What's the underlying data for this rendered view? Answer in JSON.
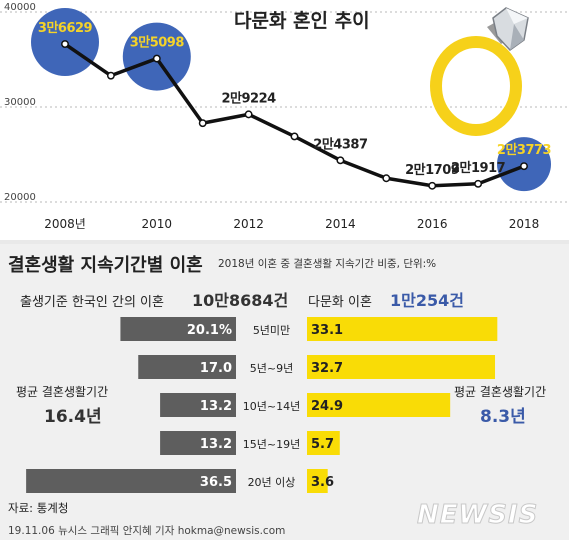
{
  "title": "다문화 혼인 추이",
  "chart_data": [
    {
      "type": "line",
      "x": [
        2008,
        2009,
        2010,
        2011,
        2012,
        2013,
        2014,
        2015,
        2016,
        2017,
        2018
      ],
      "series": [
        {
          "values": [
            36629,
            33300,
            35098,
            28300,
            29224,
            26900,
            24387,
            22500,
            21709,
            21917,
            23773
          ]
        }
      ],
      "point_labels": [
        {
          "x": 2008,
          "label": "3만6629",
          "highlight": true
        },
        {
          "x": 2010,
          "label": "3만5098",
          "highlight": true
        },
        {
          "x": 2012,
          "label": "2만9224",
          "highlight": false
        },
        {
          "x": 2014,
          "label": "2만4387",
          "highlight": false
        },
        {
          "x": 2016,
          "label": "2만1709",
          "highlight": false
        },
        {
          "x": 2017,
          "label": "2만1917",
          "highlight": false
        },
        {
          "x": 2018,
          "label": "2만3773",
          "highlight": true
        }
      ],
      "x_tick_labels": [
        "2008년",
        "2010",
        "2012",
        "2014",
        "2016",
        "2018"
      ],
      "y_tick_labels": [
        "40000",
        "30000",
        "20000"
      ],
      "ylim": [
        20000,
        40000
      ],
      "grid": true
    },
    {
      "type": "bar",
      "title": "결혼생활 지속기간별 이혼",
      "subtitle": "2018년 이혼 중 결혼생활 지속기간 비중, 단위:%",
      "categories": [
        "5년미만",
        "5년~9년",
        "10년~14년",
        "15년~19년",
        "20년 이상"
      ],
      "series": [
        {
          "name": "출생기준 한국인 간의 이혼",
          "values": [
            20.1,
            17.0,
            13.2,
            13.2,
            36.5
          ],
          "labels": [
            "20.1%",
            "17.0",
            "13.2",
            "13.2",
            "36.5"
          ]
        },
        {
          "name": "다문화 이혼",
          "values": [
            33.1,
            32.7,
            24.9,
            5.7,
            3.6
          ],
          "labels": [
            "33.1",
            "32.7",
            "24.9",
            "5.7",
            "3.6"
          ]
        }
      ]
    }
  ],
  "groups": {
    "left_label": "출생기준 한국인 간의 이혼",
    "left_total": "10만8684건",
    "right_label": "다문화 이혼",
    "right_total": "1만254건"
  },
  "averages": {
    "left_label": "평균 결혼생활기간",
    "left_value": "16.4년",
    "right_label": "평균 결혼생활기간",
    "right_value": "8.3년"
  },
  "source": "자료: 통계청",
  "credit": "19.11.06 뉴시스 그래픽 안지혜 기자 hokma@newsis.com",
  "watermark": "NEWSIS",
  "colors": {
    "line": "#111111",
    "bubble": "#3f66b8",
    "bubble_text": "#f5d328",
    "bar_left": "#5e5e5e",
    "bar_right": "#f9dc06",
    "ring": "#f6d11a",
    "right_accent": "#3a5aa8"
  }
}
